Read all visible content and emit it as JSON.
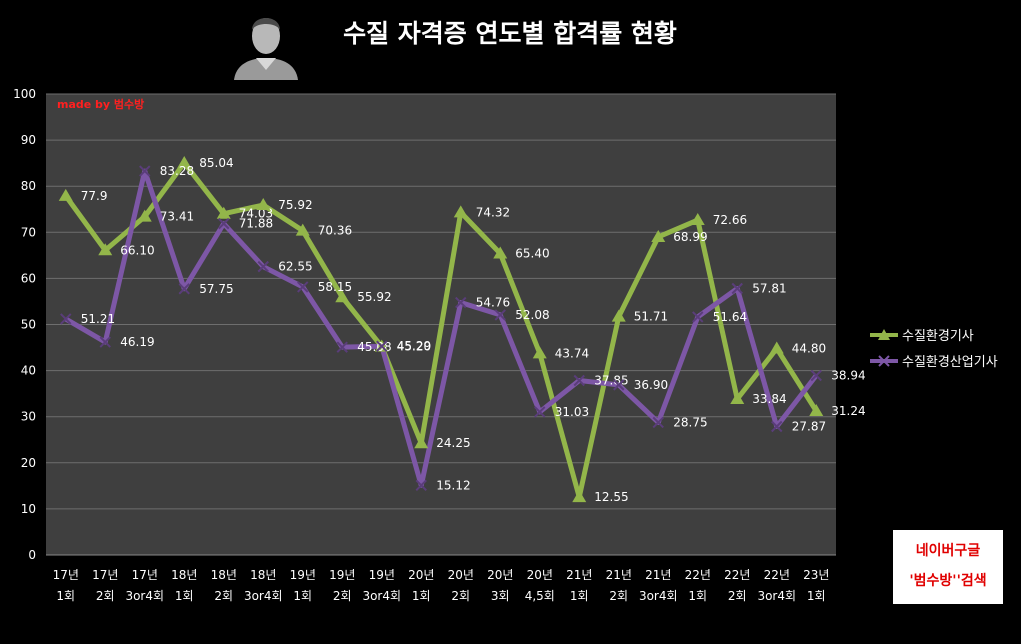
{
  "title": "수질 자격증 연도별 합격률 현황",
  "author_label": "made by  범수방",
  "search_note": {
    "line1": "네이버구글",
    "line2": "'범수방''검색"
  },
  "chart_data": {
    "type": "line",
    "categories": [
      [
        "17년",
        "1회"
      ],
      [
        "17년",
        "2회"
      ],
      [
        "17년",
        "3or4회"
      ],
      [
        "18년",
        "1회"
      ],
      [
        "18년",
        "2회"
      ],
      [
        "18년",
        "3or4회"
      ],
      [
        "19년",
        "1회"
      ],
      [
        "19년",
        "2회"
      ],
      [
        "19년",
        "3or4회"
      ],
      [
        "20년",
        "1회"
      ],
      [
        "20년",
        "2회"
      ],
      [
        "20년",
        "3회"
      ],
      [
        "20년",
        "4,5회"
      ],
      [
        "21년",
        "1회"
      ],
      [
        "21년",
        "2회"
      ],
      [
        "21년",
        "3or4회"
      ],
      [
        "22년",
        "1회"
      ],
      [
        "22년",
        "2회"
      ],
      [
        "22년",
        "3or4회"
      ],
      [
        "23년",
        "1회"
      ]
    ],
    "ylim": [
      0,
      100
    ],
    "yticks": [
      0,
      10,
      20,
      30,
      40,
      50,
      60,
      70,
      80,
      90,
      100
    ],
    "grid": true,
    "legend_position": "right",
    "series": [
      {
        "name": "수질환경기사",
        "color": "#93b64a",
        "marker": "triangle",
        "values": [
          77.9,
          66.1,
          73.41,
          85.04,
          74.03,
          75.92,
          70.36,
          55.92,
          45.2,
          24.25,
          74.32,
          65.4,
          43.74,
          12.55,
          51.71,
          68.99,
          72.66,
          33.84,
          44.8,
          31.24
        ],
        "labels": [
          "77.9",
          "66.10",
          "73.41",
          "85.04",
          "74.03",
          "75.92",
          "70.36",
          "55.92",
          "45.20",
          "24.25",
          "74.32",
          "65.40",
          "43.74",
          "12.55",
          "51.71",
          "68.99",
          "72.66",
          "33.84",
          "44.80",
          "31.24"
        ]
      },
      {
        "name": "수질환경산업기사",
        "color": "#7d57a6",
        "marker": "x",
        "values": [
          51.21,
          46.19,
          83.28,
          57.75,
          71.88,
          62.55,
          58.15,
          45.08,
          45.29,
          15.12,
          54.76,
          52.08,
          31.03,
          37.85,
          36.9,
          28.75,
          51.64,
          57.81,
          27.87,
          38.94
        ],
        "labels": [
          "51.21",
          "46.19",
          "83.28",
          "57.75",
          "71.88",
          "62.55",
          "58.15",
          "45.08",
          "45.29",
          "15.12",
          "54.76",
          "52.08",
          "31.03",
          "37.85",
          "36.90",
          "28.75",
          "51.64",
          "57.81",
          "27.87",
          "38.94"
        ]
      }
    ]
  }
}
